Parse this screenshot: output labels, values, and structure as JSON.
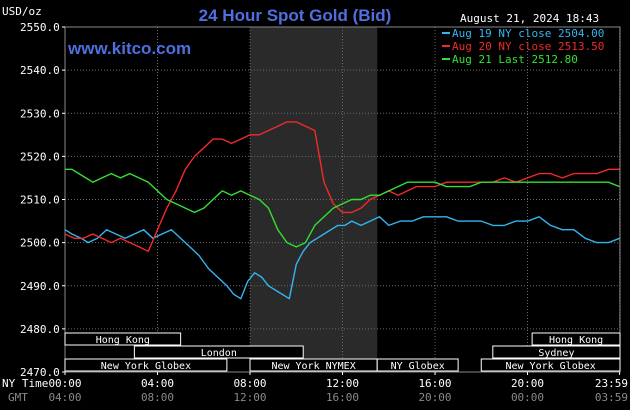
{
  "header": {
    "unit": "USD/oz",
    "title": "24 Hour Spot Gold (Bid)",
    "timestamp": "August 21, 2024 18:43",
    "brand": "www.kitco.com"
  },
  "colors": {
    "background": "#000000",
    "grid": "#6a6a6a",
    "highlight": "#2a2a2a",
    "aug19": "#33b5f0",
    "aug20": "#f02a2a",
    "aug21": "#33e033",
    "title": "#4f6fe0"
  },
  "legend": [
    {
      "text": "Aug 19 NY close 2504.00",
      "color": "#33b5f0"
    },
    {
      "text": "Aug 20 NY close 2513.50",
      "color": "#f02a2a"
    },
    {
      "text": "Aug 21 Last 2512.80",
      "color": "#33e033"
    }
  ],
  "axis_labels": {
    "ny_time": "NY Time",
    "gmt": "GMT"
  },
  "sessions": [
    {
      "name": "Hong Kong",
      "row": 0,
      "start": 0.0,
      "end": 5.0
    },
    {
      "name": "London",
      "row": 1,
      "start": 3.0,
      "end": 10.3
    },
    {
      "name": "New York Globex",
      "row": 2,
      "start": 0.0,
      "end": 7.0
    },
    {
      "name": "New York NYMEX",
      "row": 2,
      "start": 8.0,
      "end": 13.5
    },
    {
      "name": "NY Globex",
      "row": 2,
      "start": 13.5,
      "end": 17.0
    },
    {
      "name": "Hong Kong",
      "row": 0,
      "start": 20.2,
      "end": 24.0
    },
    {
      "name": "Sydney",
      "row": 1,
      "start": 18.5,
      "end": 24.0
    },
    {
      "name": "New York Globex",
      "row": 2,
      "start": 18.0,
      "end": 24.0
    }
  ],
  "chart_data": {
    "type": "line",
    "title": "24 Hour Spot Gold (Bid)",
    "ylabel": "USD/oz",
    "xlim": [
      0,
      24
    ],
    "ylim": [
      2470,
      2550
    ],
    "yticks": [
      2470,
      2480,
      2490,
      2500,
      2510,
      2520,
      2530,
      2540,
      2550
    ],
    "xticks": [
      {
        "x": 0,
        "ny": "00:00",
        "gmt": "04:00"
      },
      {
        "x": 4,
        "ny": "04:00",
        "gmt": "08:00"
      },
      {
        "x": 8,
        "ny": "08:00",
        "gmt": "12:00"
      },
      {
        "x": 12,
        "ny": "12:00",
        "gmt": "16:00"
      },
      {
        "x": 16,
        "ny": "16:00",
        "gmt": "20:00"
      },
      {
        "x": 20,
        "ny": "20:00",
        "gmt": "00:00"
      },
      {
        "x": 23.983,
        "ny": "23:59",
        "gmt": "03:59"
      }
    ],
    "highlight_x": [
      8,
      13.5
    ],
    "grid": true,
    "series": [
      {
        "name": "Aug 19 NY close 2504.00",
        "color": "#33b5f0",
        "x": [
          0,
          0.3,
          0.7,
          1.0,
          1.4,
          1.8,
          2.2,
          2.6,
          3.0,
          3.4,
          3.8,
          4.2,
          4.6,
          5.0,
          5.4,
          5.8,
          6.2,
          6.6,
          7.0,
          7.3,
          7.6,
          7.9,
          8.2,
          8.5,
          8.8,
          9.1,
          9.4,
          9.7,
          10.0,
          10.3,
          10.6,
          10.9,
          11.2,
          11.5,
          11.8,
          12.1,
          12.4,
          12.8,
          13.2,
          13.6,
          14.0,
          14.5,
          15.0,
          15.5,
          16.0,
          16.5,
          17.0,
          17.5,
          18.0,
          18.5,
          19.0,
          19.5,
          20.0,
          20.5,
          21.0,
          21.5,
          22.0,
          22.5,
          23.0,
          23.5,
          23.983
        ],
        "values": [
          2503,
          2502,
          2501,
          2500,
          2501,
          2503,
          2502,
          2501,
          2502,
          2503,
          2501,
          2502,
          2503,
          2501,
          2499,
          2497,
          2494,
          2492,
          2490,
          2488,
          2487,
          2491,
          2493,
          2492,
          2490,
          2489,
          2488,
          2487,
          2495,
          2498,
          2500,
          2501,
          2502,
          2503,
          2504,
          2504,
          2505,
          2504,
          2505,
          2506,
          2504,
          2505,
          2505,
          2506,
          2506,
          2506,
          2505,
          2505,
          2505,
          2504,
          2504,
          2505,
          2505,
          2506,
          2504,
          2503,
          2503,
          2501,
          2500,
          2500,
          2501
        ]
      },
      {
        "name": "Aug 20 NY close 2513.50",
        "color": "#f02a2a",
        "x": [
          0,
          0.4,
          0.8,
          1.2,
          1.6,
          2.0,
          2.4,
          2.8,
          3.2,
          3.6,
          4.0,
          4.4,
          4.8,
          5.2,
          5.6,
          6.0,
          6.4,
          6.8,
          7.2,
          7.6,
          8.0,
          8.4,
          8.8,
          9.2,
          9.6,
          10.0,
          10.4,
          10.8,
          11.2,
          11.6,
          12.0,
          12.4,
          12.8,
          13.2,
          13.6,
          14.0,
          14.4,
          14.8,
          15.2,
          15.6,
          16.0,
          16.5,
          17.0,
          17.5,
          18.0,
          18.5,
          19.0,
          19.5,
          20.0,
          20.5,
          21.0,
          21.5,
          22.0,
          22.5,
          23.0,
          23.5,
          23.983
        ],
        "values": [
          2502,
          2501,
          2501,
          2502,
          2501,
          2500,
          2501,
          2500,
          2499,
          2498,
          2503,
          2508,
          2512,
          2517,
          2520,
          2522,
          2524,
          2524,
          2523,
          2524,
          2525,
          2525,
          2526,
          2527,
          2528,
          2528,
          2527,
          2526,
          2514,
          2509,
          2507,
          2507,
          2508,
          2510,
          2511,
          2512,
          2511,
          2512,
          2513,
          2513,
          2513,
          2514,
          2514,
          2514,
          2514,
          2514,
          2515,
          2514,
          2515,
          2516,
          2516,
          2515,
          2516,
          2516,
          2516,
          2517,
          2517
        ]
      },
      {
        "name": "Aug 21 Last 2512.80",
        "color": "#33e033",
        "x": [
          0,
          0.3,
          0.6,
          0.9,
          1.2,
          1.6,
          2.0,
          2.4,
          2.8,
          3.2,
          3.6,
          4.0,
          4.4,
          4.8,
          5.2,
          5.6,
          6.0,
          6.4,
          6.8,
          7.2,
          7.6,
          8.0,
          8.4,
          8.8,
          9.2,
          9.6,
          10.0,
          10.4,
          10.8,
          11.2,
          11.6,
          12.0,
          12.4,
          12.8,
          13.2,
          13.6,
          14.0,
          14.4,
          14.8,
          15.2,
          15.6,
          16.0,
          16.5,
          17.0,
          17.5,
          18.0,
          18.5,
          19.0,
          19.5,
          20.0,
          20.5,
          21.0,
          21.5,
          22.0,
          22.5,
          23.0,
          23.5,
          23.983
        ],
        "values": [
          2517,
          2517,
          2516,
          2515,
          2514,
          2515,
          2516,
          2515,
          2516,
          2515,
          2514,
          2512,
          2510,
          2509,
          2508,
          2507,
          2508,
          2510,
          2512,
          2511,
          2512,
          2511,
          2510,
          2508,
          2503,
          2500,
          2499,
          2500,
          2504,
          2506,
          2508,
          2509,
          2510,
          2510,
          2511,
          2511,
          2512,
          2513,
          2514,
          2514,
          2514,
          2514,
          2513,
          2513,
          2513,
          2514,
          2514,
          2514,
          2514,
          2514,
          2514,
          2514,
          2514,
          2514,
          2514,
          2514,
          2514,
          2513
        ]
      }
    ]
  }
}
